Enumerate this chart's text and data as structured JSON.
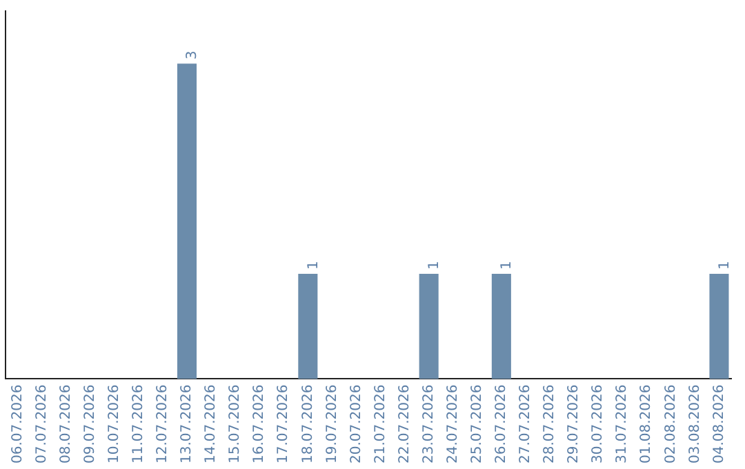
{
  "chart_data": {
    "type": "bar",
    "categories": [
      "06.07.2026",
      "07.07.2026",
      "08.07.2026",
      "09.07.2026",
      "10.07.2026",
      "11.07.2026",
      "12.07.2026",
      "13.07.2026",
      "14.07.2026",
      "15.07.2026",
      "16.07.2026",
      "17.07.2026",
      "18.07.2026",
      "19.07.2026",
      "20.07.2026",
      "21.07.2026",
      "22.07.2026",
      "23.07.2026",
      "24.07.2026",
      "25.07.2026",
      "26.07.2026",
      "27.07.2026",
      "28.07.2026",
      "29.07.2026",
      "30.07.2026",
      "31.07.2026",
      "01.08.2026",
      "02.08.2026",
      "03.08.2026",
      "04.08.2026"
    ],
    "values": [
      0,
      0,
      0,
      0,
      0,
      0,
      0,
      3,
      0,
      0,
      0,
      0,
      1,
      0,
      0,
      0,
      0,
      1,
      0,
      0,
      1,
      0,
      0,
      0,
      0,
      0,
      0,
      0,
      0,
      1
    ],
    "value_labels": [
      null,
      null,
      null,
      null,
      null,
      null,
      null,
      "3",
      null,
      null,
      null,
      null,
      "1",
      null,
      null,
      null,
      null,
      "1",
      null,
      null,
      "1",
      null,
      null,
      null,
      null,
      null,
      null,
      null,
      null,
      "1"
    ],
    "color": "#6b8cab",
    "tick_labels": "x",
    "grid": false,
    "legend": false
  }
}
